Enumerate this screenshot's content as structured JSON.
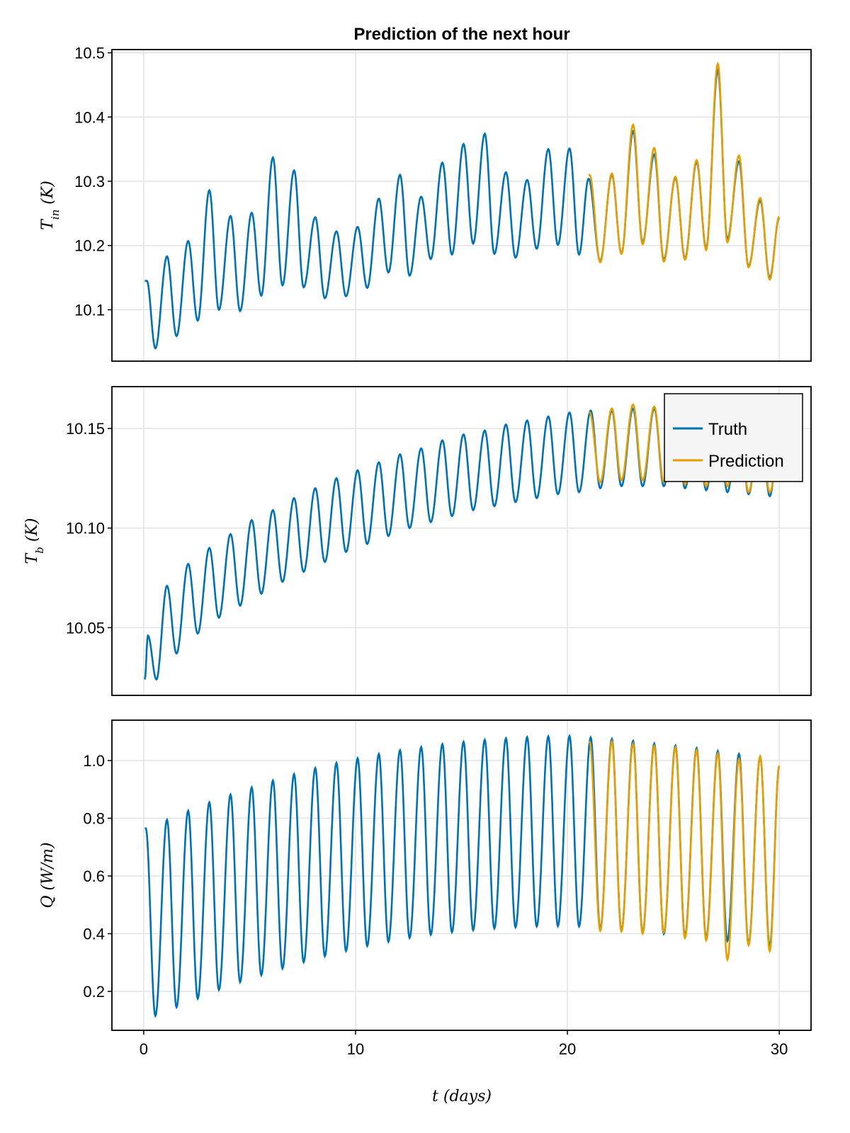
{
  "chart_data": {
    "type": "line",
    "title": "Prediction of the next hour",
    "xlabel": "t (days)",
    "xlim": [
      -1.5,
      31.5
    ],
    "xticks": [
      0,
      10,
      20,
      30
    ],
    "xtick_labels": [
      "0",
      "10",
      "20",
      "30"
    ],
    "grid": true,
    "legend": {
      "placement": "top-right of middle panel",
      "entries": [
        {
          "name": "Truth",
          "color": "#0072B2"
        },
        {
          "name": "Prediction",
          "color": "#E69F00"
        }
      ]
    },
    "colors": {
      "truth": "#0072B2",
      "prediction": "#E69F00"
    },
    "sampling": {
      "t_start": 0.05,
      "t_end": 30.0,
      "step": 0.05,
      "prediction_start": 21.0
    },
    "panels": [
      {
        "id": "tin",
        "ylabel": "T_in (K)",
        "ylabel_main": "T",
        "ylabel_sub": "in",
        "ylabel_unit": " (K)",
        "ylim": [
          10.02,
          10.505
        ],
        "yticks": [
          10.1,
          10.2,
          10.3,
          10.4,
          10.5
        ],
        "ytick_labels": [
          "10.1",
          "10.2",
          "10.3",
          "10.4",
          "10.5"
        ],
        "truth_peaks": [
          [
            0.15,
            10.145
          ],
          [
            1.1,
            10.183
          ],
          [
            2.1,
            10.207
          ],
          [
            3.1,
            10.286
          ],
          [
            4.1,
            10.246
          ],
          [
            5.1,
            10.251
          ],
          [
            6.1,
            10.337
          ],
          [
            7.1,
            10.317
          ],
          [
            8.1,
            10.244
          ],
          [
            9.1,
            10.222
          ],
          [
            10.1,
            10.229
          ],
          [
            11.1,
            10.273
          ],
          [
            12.1,
            10.31
          ],
          [
            13.1,
            10.276
          ],
          [
            14.1,
            10.329
          ],
          [
            15.1,
            10.358
          ],
          [
            16.1,
            10.374
          ],
          [
            17.1,
            10.314
          ],
          [
            18.1,
            10.302
          ],
          [
            19.1,
            10.35
          ],
          [
            20.1,
            10.351
          ],
          [
            21.0,
            10.304
          ],
          [
            22.1,
            10.31
          ],
          [
            23.1,
            10.378
          ],
          [
            24.1,
            10.342
          ],
          [
            25.1,
            10.305
          ],
          [
            26.1,
            10.33
          ],
          [
            27.1,
            10.473
          ],
          [
            28.1,
            10.331
          ],
          [
            29.1,
            10.27
          ]
        ],
        "truth_troughs": [
          [
            0.55,
            10.04
          ],
          [
            1.55,
            10.059
          ],
          [
            2.55,
            10.083
          ],
          [
            3.55,
            10.1
          ],
          [
            4.55,
            10.098
          ],
          [
            5.55,
            10.122
          ],
          [
            6.55,
            10.138
          ],
          [
            7.55,
            10.135
          ],
          [
            8.55,
            10.118
          ],
          [
            9.55,
            10.121
          ],
          [
            10.55,
            10.134
          ],
          [
            11.55,
            10.158
          ],
          [
            12.55,
            10.153
          ],
          [
            13.55,
            10.179
          ],
          [
            14.55,
            10.186
          ],
          [
            15.55,
            10.203
          ],
          [
            16.55,
            10.187
          ],
          [
            17.55,
            10.181
          ],
          [
            18.55,
            10.195
          ],
          [
            19.55,
            10.201
          ],
          [
            20.55,
            10.186
          ],
          [
            21.55,
            10.176
          ],
          [
            22.55,
            10.188
          ],
          [
            23.55,
            10.205
          ],
          [
            24.55,
            10.178
          ],
          [
            25.55,
            10.18
          ],
          [
            26.55,
            10.196
          ],
          [
            27.55,
            10.21
          ],
          [
            28.55,
            10.168
          ],
          [
            29.55,
            10.15
          ]
        ],
        "truth_end": [
          30.0,
          10.243
        ],
        "prediction_peaks": [
          [
            21.05,
            10.31
          ],
          [
            22.1,
            10.312
          ],
          [
            23.1,
            10.388
          ],
          [
            24.1,
            10.352
          ],
          [
            25.1,
            10.307
          ],
          [
            26.1,
            10.333
          ],
          [
            27.1,
            10.483
          ],
          [
            28.1,
            10.34
          ],
          [
            29.1,
            10.274
          ]
        ],
        "prediction_troughs": [
          [
            21.55,
            10.174
          ],
          [
            22.55,
            10.187
          ],
          [
            23.55,
            10.202
          ],
          [
            24.55,
            10.175
          ],
          [
            25.55,
            10.178
          ],
          [
            26.55,
            10.193
          ],
          [
            27.55,
            10.205
          ],
          [
            28.55,
            10.166
          ],
          [
            29.55,
            10.147
          ]
        ],
        "prediction_end": [
          30.0,
          10.245
        ]
      },
      {
        "id": "tb",
        "ylabel": "T_b (K)",
        "ylabel_main": "T",
        "ylabel_sub": "b",
        "ylabel_unit": " (K)",
        "ylim": [
          10.016,
          10.171
        ],
        "yticks": [
          10.05,
          10.1,
          10.15
        ],
        "ytick_labels": [
          "10.05",
          "10.10",
          "10.15"
        ],
        "truth_peaks": [
          [
            0.2,
            10.046
          ],
          [
            1.1,
            10.071
          ],
          [
            2.1,
            10.082
          ],
          [
            3.1,
            10.09
          ],
          [
            4.1,
            10.097
          ],
          [
            5.1,
            10.104
          ],
          [
            6.1,
            10.109
          ],
          [
            7.1,
            10.115
          ],
          [
            8.1,
            10.12
          ],
          [
            9.1,
            10.125
          ],
          [
            10.1,
            10.129
          ],
          [
            11.1,
            10.133
          ],
          [
            12.1,
            10.137
          ],
          [
            13.1,
            10.14
          ],
          [
            14.1,
            10.144
          ],
          [
            15.1,
            10.147
          ],
          [
            16.1,
            10.149
          ],
          [
            17.1,
            10.152
          ],
          [
            18.1,
            10.154
          ],
          [
            19.1,
            10.156
          ],
          [
            20.1,
            10.158
          ],
          [
            21.1,
            10.159
          ],
          [
            22.1,
            10.159
          ],
          [
            23.1,
            10.16
          ],
          [
            24.1,
            10.16
          ],
          [
            25.1,
            10.159
          ],
          [
            26.1,
            10.158
          ],
          [
            27.1,
            10.158
          ],
          [
            28.1,
            10.157
          ],
          [
            29.1,
            10.156
          ]
        ],
        "truth_troughs": [
          [
            0.6,
            10.024
          ],
          [
            1.55,
            10.037
          ],
          [
            2.55,
            10.047
          ],
          [
            3.55,
            10.055
          ],
          [
            4.55,
            10.061
          ],
          [
            5.55,
            10.067
          ],
          [
            6.55,
            10.073
          ],
          [
            7.55,
            10.078
          ],
          [
            8.55,
            10.083
          ],
          [
            9.55,
            10.088
          ],
          [
            10.55,
            10.092
          ],
          [
            11.55,
            10.096
          ],
          [
            12.55,
            10.1
          ],
          [
            13.55,
            10.103
          ],
          [
            14.55,
            10.106
          ],
          [
            15.55,
            10.109
          ],
          [
            16.55,
            10.111
          ],
          [
            17.55,
            10.113
          ],
          [
            18.55,
            10.115
          ],
          [
            19.55,
            10.117
          ],
          [
            20.55,
            10.118
          ],
          [
            21.55,
            10.12
          ],
          [
            22.55,
            10.121
          ],
          [
            23.55,
            10.121
          ],
          [
            24.55,
            10.121
          ],
          [
            25.55,
            10.12
          ],
          [
            26.55,
            10.119
          ],
          [
            27.55,
            10.118
          ],
          [
            28.55,
            10.117
          ],
          [
            29.55,
            10.116
          ]
        ],
        "truth_start": [
          0.05,
          10.024
        ],
        "truth_end": [
          30.0,
          10.147
        ],
        "prediction_peaks": [
          [
            21.05,
            10.158
          ],
          [
            22.1,
            10.16
          ],
          [
            23.1,
            10.162
          ],
          [
            24.1,
            10.161
          ],
          [
            25.1,
            10.16
          ],
          [
            26.1,
            10.159
          ],
          [
            27.1,
            10.163
          ],
          [
            28.1,
            10.16
          ],
          [
            29.1,
            10.155
          ]
        ],
        "prediction_troughs": [
          [
            21.55,
            10.123
          ],
          [
            22.55,
            10.124
          ],
          [
            23.55,
            10.124
          ],
          [
            24.55,
            10.123
          ],
          [
            25.55,
            10.122
          ],
          [
            26.55,
            10.121
          ],
          [
            27.55,
            10.121
          ],
          [
            28.55,
            10.118
          ],
          [
            29.55,
            10.118
          ]
        ],
        "prediction_end": [
          30.0,
          10.14
        ]
      },
      {
        "id": "q",
        "ylabel": "Q (W/m)",
        "ylabel_main": "Q",
        "ylabel_sub": "",
        "ylabel_unit": " (W/m)",
        "ylim": [
          0.065,
          1.14
        ],
        "yticks": [
          0.2,
          0.4,
          0.6,
          0.8,
          1.0
        ],
        "ytick_labels": [
          "0.2",
          "0.4",
          "0.6",
          "0.8",
          "1.0"
        ],
        "truth_peaks": [
          [
            0.1,
            0.765
          ],
          [
            1.1,
            0.795
          ],
          [
            2.1,
            0.826
          ],
          [
            3.1,
            0.855
          ],
          [
            4.1,
            0.882
          ],
          [
            5.1,
            0.907
          ],
          [
            6.1,
            0.931
          ],
          [
            7.1,
            0.953
          ],
          [
            8.1,
            0.974
          ],
          [
            9.1,
            0.992
          ],
          [
            10.1,
            1.008
          ],
          [
            11.1,
            1.023
          ],
          [
            12.1,
            1.036
          ],
          [
            13.1,
            1.047
          ],
          [
            14.1,
            1.057
          ],
          [
            15.1,
            1.065
          ],
          [
            16.1,
            1.072
          ],
          [
            17.1,
            1.077
          ],
          [
            18.1,
            1.081
          ],
          [
            19.1,
            1.084
          ],
          [
            20.1,
            1.085
          ],
          [
            21.1,
            1.08
          ],
          [
            22.1,
            1.075
          ],
          [
            23.1,
            1.068
          ],
          [
            24.1,
            1.059
          ],
          [
            25.1,
            1.052
          ],
          [
            26.1,
            1.043
          ],
          [
            27.1,
            1.033
          ],
          [
            28.1,
            1.023
          ],
          [
            29.1,
            1.013
          ]
        ],
        "truth_troughs": [
          [
            0.55,
            0.115
          ],
          [
            1.55,
            0.145
          ],
          [
            2.55,
            0.175
          ],
          [
            3.55,
            0.205
          ],
          [
            4.55,
            0.232
          ],
          [
            5.55,
            0.256
          ],
          [
            6.55,
            0.279
          ],
          [
            7.55,
            0.301
          ],
          [
            8.55,
            0.322
          ],
          [
            9.55,
            0.34
          ],
          [
            10.55,
            0.357
          ],
          [
            11.55,
            0.372
          ],
          [
            12.55,
            0.385
          ],
          [
            13.55,
            0.396
          ],
          [
            14.55,
            0.405
          ],
          [
            15.55,
            0.412
          ],
          [
            16.55,
            0.418
          ],
          [
            17.55,
            0.422
          ],
          [
            18.55,
            0.425
          ],
          [
            19.55,
            0.426
          ],
          [
            20.55,
            0.425
          ],
          [
            21.55,
            0.415
          ],
          [
            22.55,
            0.41
          ],
          [
            23.55,
            0.404
          ],
          [
            24.55,
            0.399
          ],
          [
            25.55,
            0.392
          ],
          [
            26.55,
            0.384
          ],
          [
            27.55,
            0.375
          ],
          [
            28.55,
            0.366
          ],
          [
            29.55,
            0.355
          ]
        ],
        "truth_end": [
          30.0,
          0.98
        ],
        "prediction_peaks": [
          [
            21.05,
            1.065
          ],
          [
            22.1,
            1.066
          ],
          [
            23.1,
            1.058
          ],
          [
            24.1,
            1.051
          ],
          [
            25.1,
            1.046
          ],
          [
            26.1,
            1.036
          ],
          [
            27.1,
            1.025
          ],
          [
            28.1,
            1.005
          ],
          [
            29.1,
            1.015
          ]
        ],
        "prediction_troughs": [
          [
            21.55,
            0.41
          ],
          [
            22.55,
            0.408
          ],
          [
            23.55,
            0.4
          ],
          [
            24.55,
            0.405
          ],
          [
            25.55,
            0.385
          ],
          [
            26.55,
            0.377
          ],
          [
            27.55,
            0.31
          ],
          [
            28.55,
            0.36
          ],
          [
            29.55,
            0.34
          ]
        ],
        "prediction_end": [
          30.0,
          0.982
        ]
      }
    ]
  }
}
